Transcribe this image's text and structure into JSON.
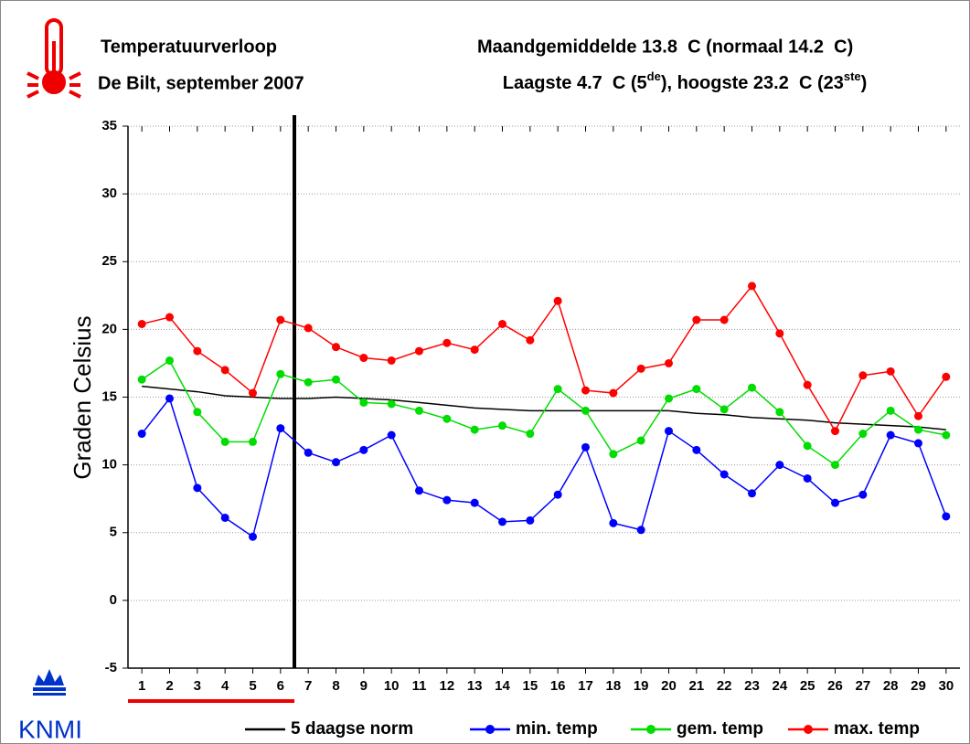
{
  "chart_data": {
    "type": "line",
    "title": "Temperatuurverloop",
    "subtitle": "De Bilt, september 2007",
    "info_line1": "Maandgemiddelde 13.8  C (normaal 14.2  C)",
    "info_line2": [
      "Laagste 4.7  C (5",
      "de",
      "), hoogste 23.2  C (23",
      "ste",
      ")"
    ],
    "logo_text": "KNMI",
    "ylabel": "Graden Celsius",
    "categories": [
      "1",
      "2",
      "3",
      "4",
      "5",
      "6",
      "7",
      "8",
      "9",
      "10",
      "11",
      "12",
      "13",
      "14",
      "15",
      "16",
      "17",
      "18",
      "19",
      "20",
      "21",
      "22",
      "23",
      "24",
      "25",
      "26",
      "27",
      "28",
      "29",
      "30"
    ],
    "ylim": [
      -5,
      35
    ],
    "yticks": [
      -5,
      0,
      5,
      10,
      15,
      20,
      25,
      30,
      35
    ],
    "grid": true,
    "series": [
      {
        "name": "5 daagse norm",
        "color": "#000000",
        "markers": false,
        "values": [
          15.8,
          15.6,
          15.4,
          15.1,
          15.0,
          14.9,
          14.9,
          15.0,
          14.9,
          14.8,
          14.6,
          14.4,
          14.2,
          14.1,
          14.0,
          14.0,
          14.0,
          14.0,
          14.0,
          14.0,
          13.8,
          13.7,
          13.5,
          13.4,
          13.3,
          13.1,
          13.0,
          12.9,
          12.8,
          12.6
        ]
      },
      {
        "name": "min. temp",
        "color": "#0000ff",
        "markers": true,
        "values": [
          12.3,
          14.9,
          8.3,
          6.1,
          4.7,
          12.7,
          10.9,
          10.2,
          11.1,
          12.2,
          8.1,
          7.4,
          7.2,
          5.8,
          5.9,
          7.8,
          11.3,
          5.7,
          5.2,
          12.5,
          11.1,
          9.3,
          7.9,
          10.0,
          9.0,
          7.2,
          7.8,
          12.2,
          11.6,
          6.2
        ]
      },
      {
        "name": "gem. temp",
        "color": "#00dd00",
        "markers": true,
        "values": [
          16.3,
          17.7,
          13.9,
          11.7,
          11.7,
          16.7,
          16.1,
          16.3,
          14.6,
          14.5,
          14.0,
          13.4,
          12.6,
          12.9,
          12.3,
          15.6,
          14.0,
          10.8,
          11.8,
          14.9,
          15.6,
          14.1,
          15.7,
          13.9,
          11.4,
          10.0,
          12.3,
          14.0,
          12.6,
          12.2
        ]
      },
      {
        "name": "max. temp",
        "color": "#ff0000",
        "markers": true,
        "values": [
          20.4,
          20.9,
          18.4,
          17.0,
          15.3,
          20.7,
          20.1,
          18.7,
          17.9,
          17.7,
          18.4,
          19.0,
          18.5,
          20.4,
          19.2,
          22.1,
          15.5,
          15.3,
          17.1,
          17.5,
          20.7,
          20.7,
          23.2,
          19.7,
          15.9,
          12.5,
          16.6,
          16.9,
          13.6,
          16.5
        ]
      }
    ]
  }
}
